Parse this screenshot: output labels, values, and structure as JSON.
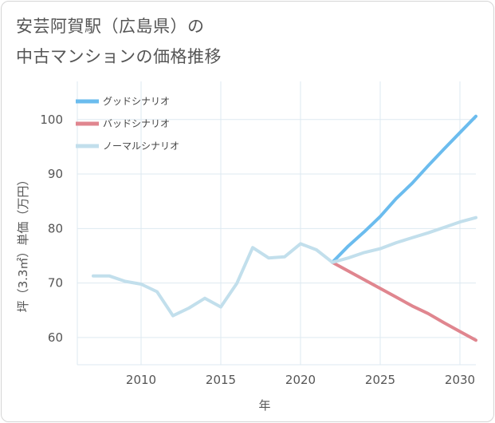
{
  "header": {
    "title_line1": "安芸阿賀駅（広島県）の",
    "title_line2": "中古マンションの価格推移"
  },
  "chart_data": {
    "type": "line",
    "title": "安芸阿賀駅（広島県）の中古マンションの価格推移",
    "xlabel": "年",
    "ylabel": "坪（3.3㎡）単価（万円）",
    "xlim": [
      2006,
      2031
    ],
    "ylim": [
      55,
      107
    ],
    "x_ticks": [
      2010,
      2015,
      2020,
      2025,
      2030
    ],
    "y_ticks": [
      60,
      70,
      80,
      90,
      100
    ],
    "grid": true,
    "legend_position": "top-left",
    "series": [
      {
        "name": "グッドシナリオ",
        "color": "#6bbcee",
        "x": [
          2022,
          2023,
          2024,
          2025,
          2026,
          2027,
          2028,
          2029,
          2030,
          2031
        ],
        "y": [
          73.8,
          76.8,
          79.4,
          82.2,
          85.5,
          88.3,
          91.5,
          94.6,
          97.6,
          100.6
        ]
      },
      {
        "name": "バッドシナリオ",
        "color": "#e0868f",
        "x": [
          2022,
          2023,
          2024,
          2025,
          2026,
          2027,
          2028,
          2029,
          2030,
          2031
        ],
        "y": [
          73.8,
          72.2,
          70.6,
          69.0,
          67.4,
          65.8,
          64.4,
          62.7,
          61.1,
          59.5
        ]
      },
      {
        "name": "ノーマルシナリオ",
        "color": "#c2dfec",
        "x": [
          2007,
          2008,
          2009,
          2010,
          2011,
          2012,
          2013,
          2014,
          2015,
          2016,
          2017,
          2018,
          2019,
          2020,
          2021,
          2022,
          2023,
          2024,
          2025,
          2026,
          2027,
          2028,
          2029,
          2030,
          2031
        ],
        "y": [
          71.3,
          71.3,
          70.3,
          69.8,
          68.4,
          64.0,
          65.4,
          67.2,
          65.6,
          69.9,
          76.5,
          74.6,
          74.8,
          77.2,
          76.1,
          73.8,
          74.6,
          75.6,
          76.3,
          77.4,
          78.3,
          79.2,
          80.2,
          81.2,
          82.0
        ]
      }
    ]
  }
}
